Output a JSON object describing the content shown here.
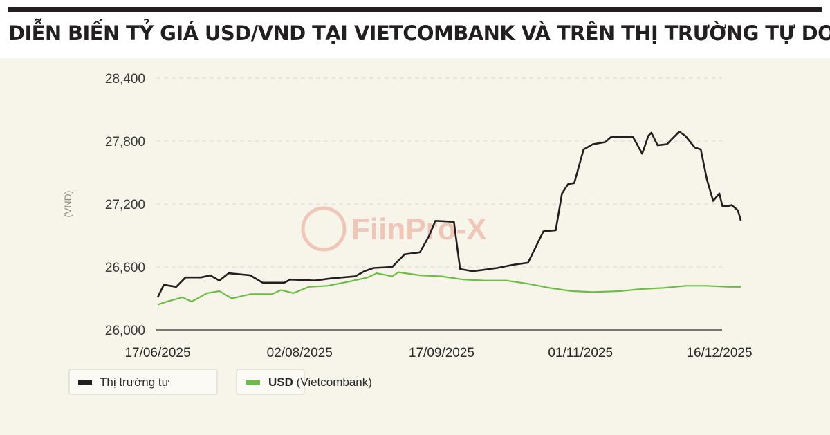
{
  "header": {
    "title": "DIỄN BIẾN TỶ GIÁ USD/VND TẠI VIETCOMBANK VÀ TRÊN THỊ TRƯỜNG TỰ DO"
  },
  "watermark": "FiinPro-X",
  "colors": {
    "free_market": "#231f20",
    "vietcombank": "#6cbd45",
    "panel_bg": "#f7f4e9",
    "grid": "#d8d8d8"
  },
  "chart_data": {
    "type": "line",
    "title": "DIỄN BIẾN TỶ GIÁ USD/VND TẠI VIETCOMBANK VÀ TRÊN THỊ TRƯỜNG TỰ DO",
    "xlabel": "",
    "ylabel": "(VND)",
    "ylim": [
      26000,
      28400
    ],
    "yticks": [
      "26,000",
      "26,600",
      "27,200",
      "27,800",
      "28,400"
    ],
    "ytick_values": [
      26000,
      26600,
      27200,
      27800,
      28400
    ],
    "xlim": [
      "2025-06-17",
      "2025-12-19"
    ],
    "xtick_labels": [
      "17/06/2025",
      "02/08/2025",
      "17/09/2025",
      "01/11/2025",
      "16/12/2025"
    ],
    "xtick_dates": [
      "2025-06-17",
      "2025-08-02",
      "2025-09-17",
      "2025-11-01",
      "2025-12-16"
    ],
    "grid": "horizontal-dashed",
    "legend_position": "bottom-left",
    "series": [
      {
        "name": "Thị trường tự",
        "color": "#231f20",
        "points": [
          [
            "2025-06-17",
            26310
          ],
          [
            "2025-06-19",
            26430
          ],
          [
            "2025-06-23",
            26410
          ],
          [
            "2025-06-26",
            26500
          ],
          [
            "2025-07-01",
            26500
          ],
          [
            "2025-07-04",
            26520
          ],
          [
            "2025-07-07",
            26470
          ],
          [
            "2025-07-10",
            26540
          ],
          [
            "2025-07-17",
            26520
          ],
          [
            "2025-07-21",
            26450
          ],
          [
            "2025-07-28",
            26450
          ],
          [
            "2025-07-30",
            26480
          ],
          [
            "2025-08-07",
            26470
          ],
          [
            "2025-08-12",
            26490
          ],
          [
            "2025-08-20",
            26510
          ],
          [
            "2025-08-23",
            26560
          ],
          [
            "2025-08-26",
            26590
          ],
          [
            "2025-09-01",
            26600
          ],
          [
            "2025-09-05",
            26720
          ],
          [
            "2025-09-10",
            26740
          ],
          [
            "2025-09-13",
            26900
          ],
          [
            "2025-09-15",
            27040
          ],
          [
            "2025-09-21",
            27030
          ],
          [
            "2025-09-23",
            26580
          ],
          [
            "2025-09-27",
            26560
          ],
          [
            "2025-09-30",
            26570
          ],
          [
            "2025-10-05",
            26590
          ],
          [
            "2025-10-10",
            26620
          ],
          [
            "2025-10-15",
            26640
          ],
          [
            "2025-10-20",
            26940
          ],
          [
            "2025-10-24",
            26950
          ],
          [
            "2025-10-26",
            27300
          ],
          [
            "2025-10-28",
            27390
          ],
          [
            "2025-10-30",
            27400
          ],
          [
            "2025-11-02",
            27720
          ],
          [
            "2025-11-05",
            27770
          ],
          [
            "2025-11-09",
            27790
          ],
          [
            "2025-11-11",
            27840
          ],
          [
            "2025-11-18",
            27840
          ],
          [
            "2025-11-21",
            27680
          ],
          [
            "2025-11-23",
            27850
          ],
          [
            "2025-11-24",
            27880
          ],
          [
            "2025-11-26",
            27760
          ],
          [
            "2025-11-29",
            27770
          ],
          [
            "2025-12-01",
            27830
          ],
          [
            "2025-12-03",
            27890
          ],
          [
            "2025-12-05",
            27850
          ],
          [
            "2025-12-08",
            27740
          ],
          [
            "2025-12-10",
            27720
          ],
          [
            "2025-12-12",
            27430
          ],
          [
            "2025-12-14",
            27230
          ],
          [
            "2025-12-16",
            27300
          ],
          [
            "2025-12-17",
            27180
          ],
          [
            "2025-12-19",
            27180
          ],
          [
            "2025-12-20",
            27190
          ],
          [
            "2025-12-22",
            27140
          ],
          [
            "2025-12-23",
            27040
          ]
        ]
      },
      {
        "name": "USD (Vietcombank)",
        "color": "#6cbd45",
        "points": [
          [
            "2025-06-17",
            26240
          ],
          [
            "2025-06-20",
            26270
          ],
          [
            "2025-06-25",
            26310
          ],
          [
            "2025-06-28",
            26270
          ],
          [
            "2025-07-03",
            26350
          ],
          [
            "2025-07-07",
            26370
          ],
          [
            "2025-07-11",
            26300
          ],
          [
            "2025-07-17",
            26340
          ],
          [
            "2025-07-24",
            26340
          ],
          [
            "2025-07-27",
            26380
          ],
          [
            "2025-07-31",
            26350
          ],
          [
            "2025-08-05",
            26410
          ],
          [
            "2025-08-11",
            26420
          ],
          [
            "2025-08-18",
            26460
          ],
          [
            "2025-08-24",
            26500
          ],
          [
            "2025-08-27",
            26540
          ],
          [
            "2025-09-01",
            26510
          ],
          [
            "2025-09-03",
            26550
          ],
          [
            "2025-09-10",
            26520
          ],
          [
            "2025-09-17",
            26510
          ],
          [
            "2025-09-24",
            26480
          ],
          [
            "2025-10-01",
            26470
          ],
          [
            "2025-10-08",
            26470
          ],
          [
            "2025-10-15",
            26440
          ],
          [
            "2025-10-22",
            26400
          ],
          [
            "2025-10-29",
            26370
          ],
          [
            "2025-11-05",
            26360
          ],
          [
            "2025-11-14",
            26370
          ],
          [
            "2025-11-21",
            26390
          ],
          [
            "2025-11-28",
            26400
          ],
          [
            "2025-12-05",
            26420
          ],
          [
            "2025-12-12",
            26420
          ],
          [
            "2025-12-19",
            26410
          ],
          [
            "2025-12-23",
            26410
          ]
        ]
      }
    ]
  },
  "legend": {
    "free_market_label": "Thị trường tự",
    "vcb_label_bold": "USD",
    "vcb_label_rest": " (Vietcombank)"
  }
}
